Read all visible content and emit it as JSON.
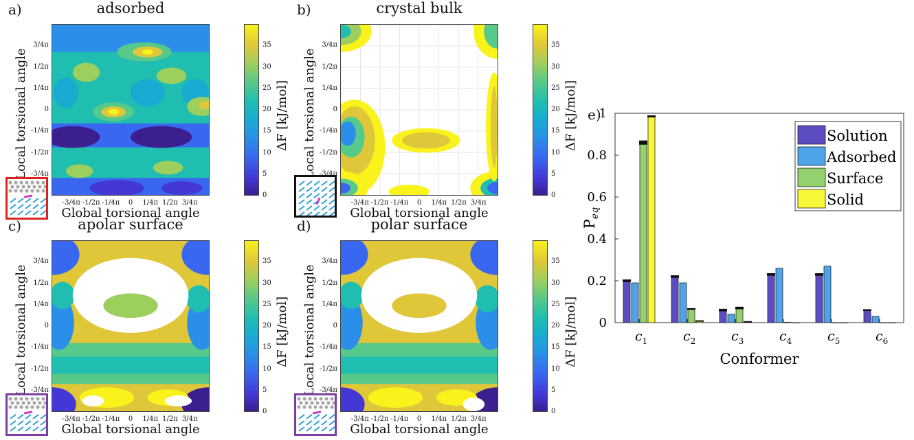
{
  "panels": [
    {
      "letter": "a)",
      "title": "adsorbed",
      "xlabel": "Global torsional angle",
      "ylabel": "Local torsional angle",
      "cbar_label": "ΔF [kJ/mol]",
      "inset_color": "#e02020"
    },
    {
      "letter": "b)",
      "title": "crystal bulk",
      "xlabel": "Global torsional angle",
      "ylabel": "Local torsional angle",
      "cbar_label": "ΔF [kJ/mol]",
      "inset_color": "#111111"
    },
    {
      "letter": "c)",
      "title": "apolar surface",
      "xlabel": "Global torsional angle",
      "ylabel": "Local torsional angle",
      "cbar_label": "ΔF [kJ/mol]",
      "inset_color": "#7a3fa0"
    },
    {
      "letter": "d)",
      "title": "polar surface",
      "xlabel": "Global torsional angle",
      "ylabel": "Local torsional angle",
      "cbar_label": "ΔF [kJ/mol]",
      "inset_color": "#7a3fa0"
    }
  ],
  "axis_ticks": {
    "x": [
      "-3/4π",
      "-1/2π",
      "-1/4π",
      "0",
      "1/4π",
      "1/2π",
      "3/4π"
    ],
    "y": [
      "3/4π",
      "1/2π",
      "1/4π",
      "0",
      "-1/4π",
      "-1/2π",
      "-3/4π"
    ],
    "cbar": [
      "35",
      "30",
      "25",
      "20",
      "15",
      "10",
      "5",
      "0"
    ]
  },
  "bar_panel": {
    "letter": "e)"
  },
  "chart_data": [
    {
      "type": "heatmap",
      "title": "adsorbed",
      "xlabel": "Global torsional angle",
      "ylabel": "Local torsional angle",
      "colorbar_label": "ΔF [kJ/mol]",
      "colorbar_range": [
        0,
        40
      ],
      "note": "full free-energy landscape; yellow maxima near (−1/4π,0) and (1/4π,3/4π)"
    },
    {
      "type": "heatmap",
      "title": "crystal bulk",
      "xlabel": "Global torsional angle",
      "ylabel": "Local torsional angle",
      "colorbar_label": "ΔF [kJ/mol]",
      "colorbar_range": [
        0,
        40
      ],
      "note": "minima at corners and near (−3/4π,−1/4π); large unsampled region"
    },
    {
      "type": "heatmap",
      "title": "apolar surface",
      "xlabel": "Global torsional angle",
      "ylabel": "Local torsional angle",
      "colorbar_label": "ΔF [kJ/mol]",
      "colorbar_range": [
        0,
        40
      ],
      "note": "minima at edges and corners"
    },
    {
      "type": "heatmap",
      "title": "polar surface",
      "xlabel": "Global torsional angle",
      "ylabel": "Local torsional angle",
      "colorbar_label": "ΔF [kJ/mol]",
      "colorbar_range": [
        0,
        40
      ],
      "note": "minima at edges and corners"
    },
    {
      "type": "bar",
      "categories": [
        "c1",
        "c2",
        "c3",
        "c4",
        "c5",
        "c6"
      ],
      "series": [
        {
          "name": "Solution",
          "color": "#5b4cc2",
          "values": [
            0.2,
            0.22,
            0.06,
            0.23,
            0.23,
            0.06
          ]
        },
        {
          "name": "Adsorbed",
          "color": "#4fa3e8",
          "values": [
            0.19,
            0.19,
            0.04,
            0.26,
            0.27,
            0.03
          ]
        },
        {
          "name": "Surface",
          "color": "#93d06e",
          "values": [
            0.86,
            0.065,
            0.07,
            0.002,
            0.0,
            0.0
          ]
        },
        {
          "name": "Solid",
          "color": "#f7f739",
          "values": [
            0.985,
            0.008,
            0.004,
            0.0,
            0.0,
            0.0
          ]
        }
      ],
      "error_bars": [
        {
          "series": "Solution",
          "values": [
            0.006,
            0.006,
            0.006,
            0.006,
            0.006,
            0.004
          ]
        },
        {
          "series": "Surface",
          "values": [
            0.01,
            0.004,
            0.006,
            0,
            0,
            0
          ]
        },
        {
          "series": "Solid",
          "values": [
            0.005,
            0.003,
            0.003,
            0,
            0,
            0
          ]
        }
      ],
      "xlabel": "Conformer",
      "ylabel": "P_eq",
      "ylim": [
        0,
        1
      ],
      "yticks": [
        "0",
        "0.2",
        "0.4",
        "0.6",
        "0.8",
        "1"
      ],
      "legend": "top-right",
      "grid": false
    }
  ]
}
